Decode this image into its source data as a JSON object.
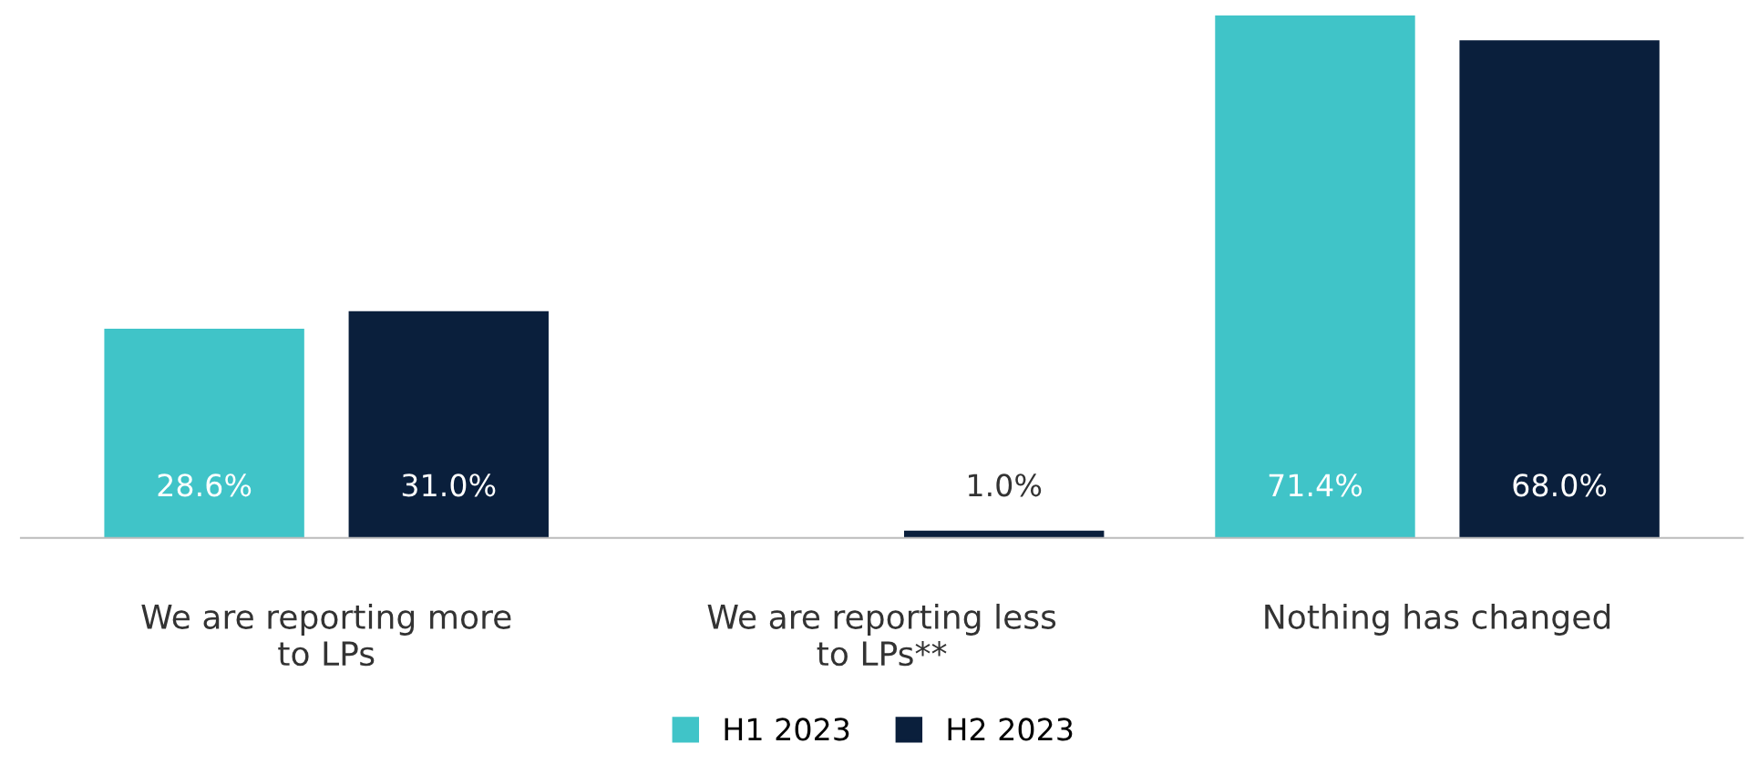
{
  "chart_data": {
    "type": "bar",
    "categories": [
      "We are reporting more\nto LPs",
      "We are reporting less\nto LPs**",
      "Nothing has changed"
    ],
    "series": [
      {
        "name": "H1 2023",
        "color": "#40c4c8",
        "values": [
          28.6,
          null,
          71.4
        ],
        "value_labels": [
          "28.6%",
          null,
          "71.4%"
        ]
      },
      {
        "name": "H2 2023",
        "color": "#0a1f3c",
        "values": [
          31.0,
          1.0,
          68.0
        ],
        "value_labels": [
          "31.0%",
          "1.0%",
          "68.0%"
        ]
      }
    ],
    "legend": "bottom",
    "grid": false
  }
}
